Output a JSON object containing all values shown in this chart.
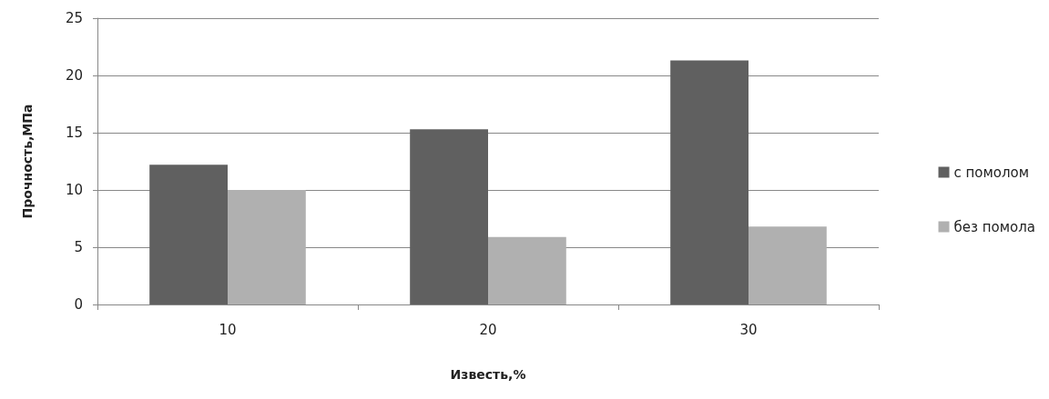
{
  "chart_data": {
    "type": "bar",
    "xlabel": "Известь,%",
    "ylabel": "Прочность,МПа",
    "categories": [
      "10",
      "20",
      "30"
    ],
    "series": [
      {
        "name": "с помолом",
        "color": "#606060",
        "values": [
          12.2,
          15.3,
          21.3
        ]
      },
      {
        "name": "без помола",
        "color": "#b0b0b0",
        "values": [
          10.0,
          5.9,
          6.8
        ]
      }
    ],
    "ylim": [
      0,
      25
    ],
    "yticks": [
      0,
      5,
      10,
      15,
      20,
      25
    ],
    "grid": "y",
    "legend": "right"
  }
}
